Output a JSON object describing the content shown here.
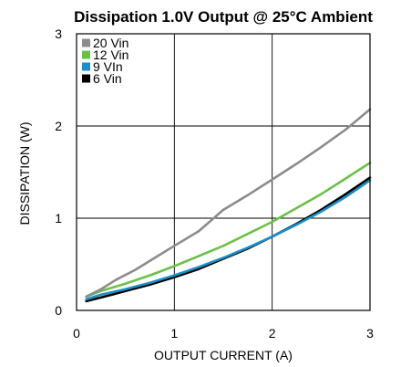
{
  "chart_data": {
    "type": "line",
    "title": "Dissipation 1.0V Output @ 25°C Ambient",
    "xlabel": "OUTPUT CURRENT (A)",
    "ylabel": "DISSIPATION (W)",
    "xlim": [
      0,
      3
    ],
    "ylim": [
      0,
      3
    ],
    "xticks": [
      "0",
      "1",
      "2",
      "3"
    ],
    "yticks": [
      "0",
      "1",
      "2",
      "3"
    ],
    "grid": true,
    "legend_position": "top-left",
    "series": [
      {
        "name": "20 Vin",
        "color": "#8c8c8c",
        "x": [
          0.1,
          0.25,
          0.4,
          0.6,
          0.8,
          1.0,
          1.25,
          1.5,
          1.75,
          2.0,
          2.25,
          2.5,
          2.75,
          3.0
        ],
        "y": [
          0.15,
          0.23,
          0.33,
          0.44,
          0.57,
          0.7,
          0.86,
          1.09,
          1.25,
          1.42,
          1.59,
          1.77,
          1.96,
          2.18
        ]
      },
      {
        "name": "12 Vin",
        "color": "#6cc04a",
        "x": [
          0.1,
          0.25,
          0.5,
          0.75,
          1.0,
          1.25,
          1.5,
          1.75,
          2.0,
          2.25,
          2.5,
          2.75,
          3.0
        ],
        "y": [
          0.15,
          0.21,
          0.29,
          0.38,
          0.48,
          0.59,
          0.7,
          0.83,
          0.96,
          1.11,
          1.26,
          1.43,
          1.6
        ]
      },
      {
        "name": "9 VIn",
        "color": "#1a8fc9",
        "x": [
          0.1,
          0.25,
          0.5,
          0.75,
          1.0,
          1.25,
          1.5,
          1.75,
          2.0,
          2.25,
          2.5,
          2.75,
          3.0
        ],
        "y": [
          0.12,
          0.17,
          0.23,
          0.3,
          0.38,
          0.47,
          0.57,
          0.68,
          0.8,
          0.93,
          1.07,
          1.23,
          1.41
        ]
      },
      {
        "name": "6 Vin",
        "color": "#000000",
        "x": [
          0.1,
          0.25,
          0.5,
          0.75,
          1.0,
          1.25,
          1.5,
          1.75,
          2.0,
          2.25,
          2.5,
          2.75,
          3.0
        ],
        "y": [
          0.1,
          0.14,
          0.21,
          0.28,
          0.36,
          0.45,
          0.56,
          0.67,
          0.8,
          0.94,
          1.09,
          1.26,
          1.44
        ]
      }
    ]
  }
}
